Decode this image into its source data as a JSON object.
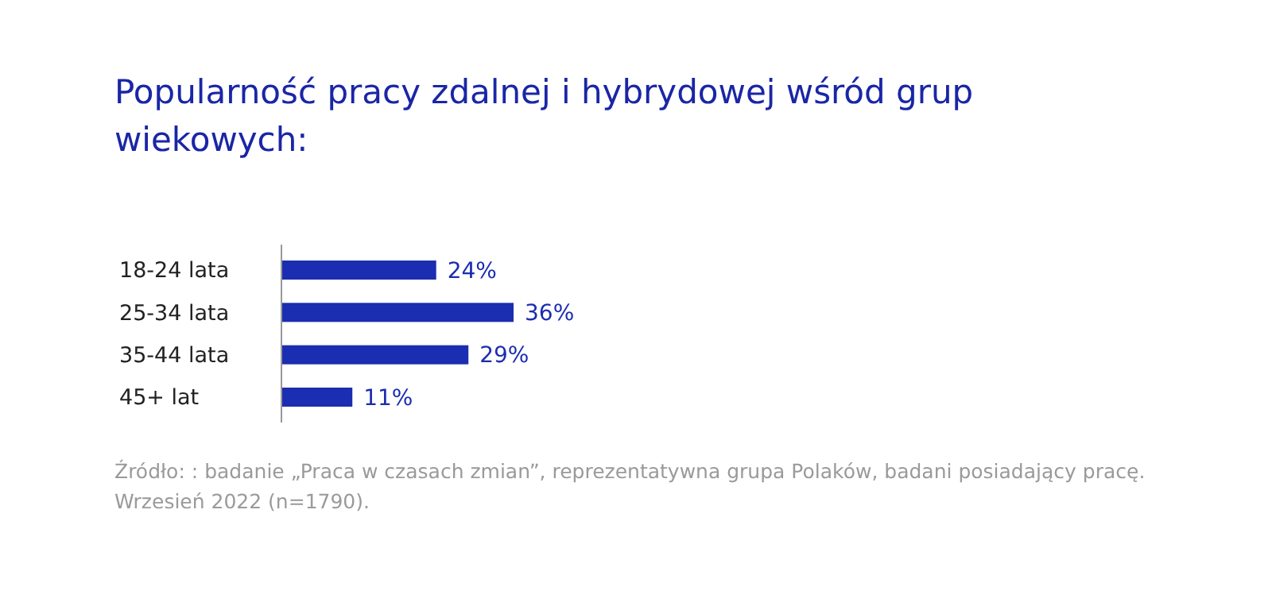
{
  "chart_data": {
    "type": "bar",
    "orientation": "horizontal",
    "title": "Popularność pracy zdalnej i hybrydowej wśród grup wiekowych:",
    "categories": [
      "18-24 lata",
      "25-34 lata",
      "35-44 lata",
      "45+ lat"
    ],
    "values": [
      24,
      36,
      29,
      11
    ],
    "value_labels": [
      "24%",
      "36%",
      "29%",
      "11%"
    ],
    "color": "#1b2db0",
    "annotations": [
      "Źródło: : badanie „Praca w czasach zmian”, reprezentatywna grupa Polaków, badani posiadający pracę.",
      "Wrzesień 2022 (n=1790)."
    ]
  }
}
